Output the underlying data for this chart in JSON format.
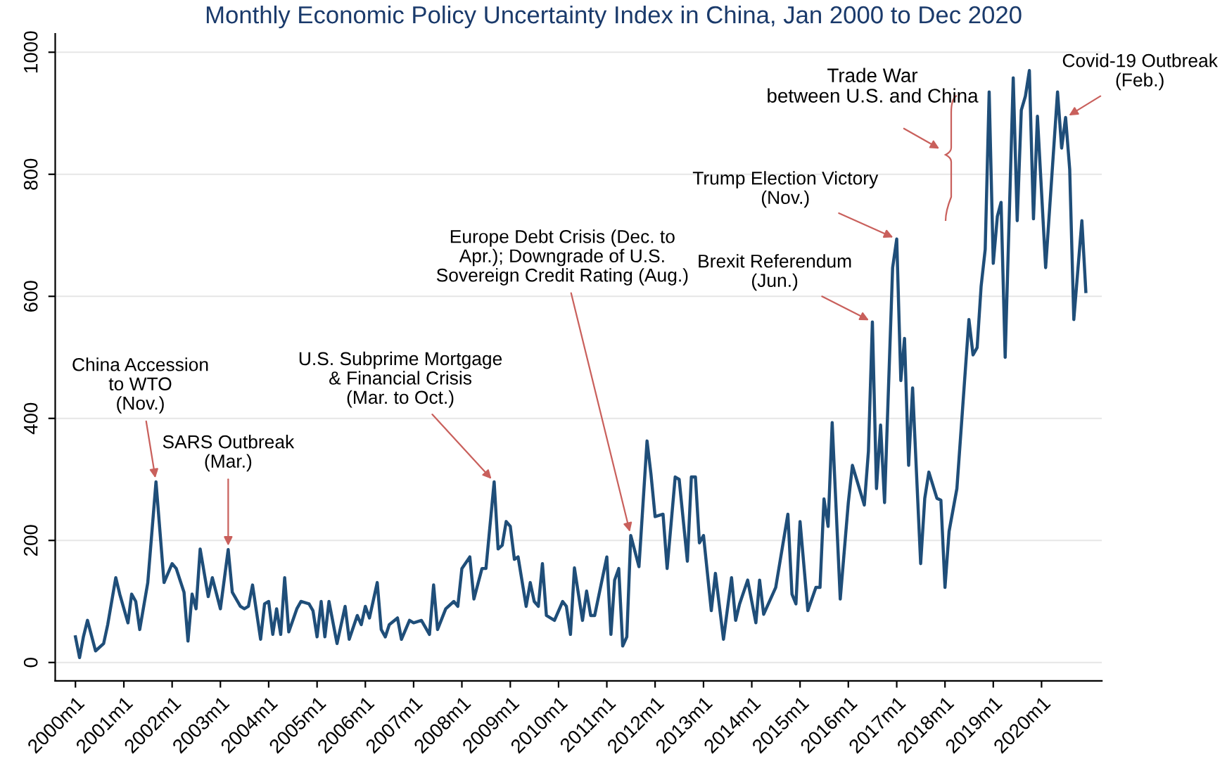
{
  "chart_data": {
    "type": "line",
    "title": "Monthly Economic Policy Uncertainty Index in China, Jan 2000 to Dec 2020",
    "x": [
      "2000-01",
      "2000-02",
      "2000-03",
      "2000-04",
      "2000-06",
      "2000-08",
      "2000-09",
      "2000-11",
      "2000-12",
      "2001-02",
      "2001-03",
      "2001-04",
      "2001-05",
      "2001-07",
      "2001-09",
      "2001-11",
      "2002-01",
      "2002-02",
      "2002-04",
      "2002-05",
      "2002-06",
      "2002-07",
      "2002-08",
      "2002-10",
      "2002-11",
      "2003-01",
      "2003-03",
      "2003-04",
      "2003-06",
      "2003-07",
      "2003-08",
      "2003-09",
      "2003-11",
      "2003-12",
      "2004-01",
      "2004-02",
      "2004-03",
      "2004-04",
      "2004-05",
      "2004-06",
      "2004-08",
      "2004-09",
      "2004-11",
      "2004-12",
      "2005-01",
      "2005-02",
      "2005-03",
      "2005-04",
      "2005-06",
      "2005-08",
      "2005-09",
      "2005-11",
      "2005-12",
      "2006-01",
      "2006-02",
      "2006-04",
      "2006-05",
      "2006-06",
      "2006-07",
      "2006-09",
      "2006-10",
      "2006-12",
      "2007-01",
      "2007-03",
      "2007-05",
      "2007-06",
      "2007-07",
      "2007-09",
      "2007-11",
      "2007-12",
      "2008-01",
      "2008-03",
      "2008-04",
      "2008-06",
      "2008-07",
      "2008-09",
      "2008-10",
      "2008-11",
      "2008-12",
      "2009-01",
      "2009-02",
      "2009-03",
      "2009-05",
      "2009-06",
      "2009-07",
      "2009-08",
      "2009-09",
      "2009-10",
      "2009-12",
      "2010-02",
      "2010-03",
      "2010-04",
      "2010-05",
      "2010-07",
      "2010-08",
      "2010-09",
      "2010-10",
      "2011-01",
      "2011-02",
      "2011-03",
      "2011-04",
      "2011-05",
      "2011-06",
      "2011-07",
      "2011-09",
      "2011-11",
      "2011-12",
      "2012-01",
      "2012-03",
      "2012-04",
      "2012-06",
      "2012-07",
      "2012-09",
      "2012-10",
      "2012-11",
      "2012-12",
      "2013-01",
      "2013-03",
      "2013-04",
      "2013-06",
      "2013-08",
      "2013-09",
      "2013-10",
      "2013-12",
      "2014-02",
      "2014-03",
      "2014-04",
      "2014-07",
      "2014-10",
      "2014-11",
      "2014-12",
      "2015-01",
      "2015-03",
      "2015-05",
      "2015-06",
      "2015-07",
      "2015-08",
      "2015-09",
      "2015-11",
      "2016-01",
      "2016-02",
      "2016-05",
      "2016-06",
      "2016-07",
      "2016-08",
      "2016-09",
      "2016-10",
      "2016-12",
      "2017-01",
      "2017-02",
      "2017-03",
      "2017-04",
      "2017-05",
      "2017-07",
      "2017-08",
      "2017-09",
      "2017-11",
      "2017-12",
      "2018-01",
      "2018-02",
      "2018-04",
      "2018-07",
      "2018-08",
      "2018-09",
      "2018-10",
      "2018-11",
      "2018-12",
      "2019-01",
      "2019-02",
      "2019-03",
      "2019-04",
      "2019-06",
      "2019-07",
      "2019-08",
      "2019-09",
      "2019-10",
      "2019-11",
      "2019-12",
      "2020-02",
      "2020-05",
      "2020-06",
      "2020-07",
      "2020-08",
      "2020-09",
      "2020-11",
      "2020-12"
    ],
    "series": [
      {
        "color": "#1f4e79",
        "values": [
          42,
          8,
          42,
          69,
          19,
          31,
          62,
          139,
          112,
          65,
          112,
          100,
          54,
          131,
          296,
          131,
          162,
          154,
          115,
          35,
          112,
          88,
          186,
          108,
          139,
          88,
          185,
          115,
          92,
          88,
          92,
          127,
          38,
          96,
          100,
          46,
          88,
          46,
          139,
          50,
          88,
          100,
          96,
          85,
          42,
          100,
          42,
          100,
          31,
          92,
          38,
          77,
          62,
          92,
          73,
          131,
          54,
          42,
          62,
          73,
          38,
          69,
          65,
          69,
          46,
          127,
          54,
          88,
          100,
          92,
          154,
          173,
          104,
          154,
          154,
          296,
          186,
          192,
          231,
          223,
          169,
          173,
          92,
          131,
          100,
          92,
          162,
          77,
          69,
          100,
          92,
          46,
          155,
          69,
          117,
          77,
          77,
          173,
          46,
          135,
          154,
          27,
          42,
          208,
          157,
          363,
          308,
          239,
          243,
          154,
          304,
          300,
          166,
          304,
          304,
          196,
          208,
          85,
          146,
          38,
          139,
          69,
          96,
          135,
          65,
          135,
          79,
          123,
          243,
          112,
          96,
          231,
          85,
          123,
          123,
          268,
          223,
          393,
          104,
          262,
          323,
          258,
          346,
          558,
          285,
          389,
          262,
          647,
          694,
          462,
          531,
          323,
          450,
          162,
          269,
          312,
          269,
          266,
          123,
          215,
          285,
          562,
          504,
          516,
          616,
          677,
          935,
          654,
          731,
          754,
          500,
          958,
          724,
          905,
          928,
          970,
          727,
          895,
          647,
          935,
          843,
          893,
          808,
          562,
          724,
          608
        ]
      }
    ],
    "xlim": [
      "1999-08",
      "2021-04"
    ],
    "ylim": [
      -30,
      1030
    ],
    "xticks": [
      {
        "value": "2000-01",
        "label": "2000m1"
      },
      {
        "value": "2001-01",
        "label": "2001m1"
      },
      {
        "value": "2002-01",
        "label": "2002m1"
      },
      {
        "value": "2003-01",
        "label": "2003m1"
      },
      {
        "value": "2004-01",
        "label": "2004m1"
      },
      {
        "value": "2005-01",
        "label": "2005m1"
      },
      {
        "value": "2006-01",
        "label": "2006m1"
      },
      {
        "value": "2007-01",
        "label": "2007m1"
      },
      {
        "value": "2008-01",
        "label": "2008m1"
      },
      {
        "value": "2009-01",
        "label": "2009m1"
      },
      {
        "value": "2010-01",
        "label": "2010m1"
      },
      {
        "value": "2011-01",
        "label": "2011m1"
      },
      {
        "value": "2012-01",
        "label": "2012m1"
      },
      {
        "value": "2013-01",
        "label": "2013m1"
      },
      {
        "value": "2014-01",
        "label": "2014m1"
      },
      {
        "value": "2015-01",
        "label": "2015m1"
      },
      {
        "value": "2016-01",
        "label": "2016m1"
      },
      {
        "value": "2017-01",
        "label": "2017m1"
      },
      {
        "value": "2018-01",
        "label": "2018m1"
      },
      {
        "value": "2019-01",
        "label": "2019m1"
      },
      {
        "value": "2020-01",
        "label": "2020m1"
      }
    ],
    "yticks": [
      0,
      200,
      400,
      600,
      800,
      1000
    ],
    "grid": "y",
    "annotations": [
      {
        "text": "China Accession\nto WTO\n(Nov.)",
        "x": "2001-09",
        "y": 296
      },
      {
        "text": "SARS Outbreak\n(Mar.)",
        "x": "2003-03",
        "y": 185
      },
      {
        "text": "U.S. Subprime Mortgage\n& Financial Crisis\n(Mar. to Oct.)",
        "x": "2008-09",
        "y": 296
      },
      {
        "text": "Europe Debt Crisis (Dec. to\nApr.); Downgrade of U.S.\nSovereign Credit Rating (Aug.)",
        "x": "2011-07",
        "y": 208
      },
      {
        "text": "Brexit Referendum\n(Jun.)",
        "x": "2016-07",
        "y": 558
      },
      {
        "text": "Trump Election Victory\n(Nov.)",
        "x": "2017-01",
        "y": 694
      },
      "Trade War\nbetween U.S. and China",
      {
        "text": "Covid-19 Outbreak\n(Feb.)",
        "x": "2020-07",
        "y": 893
      }
    ]
  }
}
